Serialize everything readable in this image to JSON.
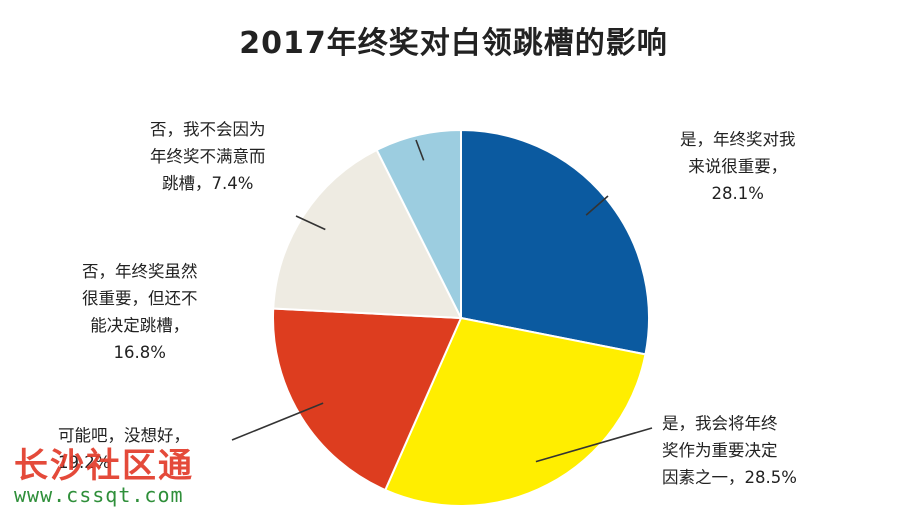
{
  "chart_data": {
    "type": "pie",
    "title": "2017年终奖对白领跳槽的影响",
    "slices": [
      {
        "name": "是，年终奖对我来说很重要",
        "value": 28.1,
        "color": "#0b5aa0",
        "label_lines": [
          "是，年终奖对我",
          "来说很重要，",
          "28.1%"
        ]
      },
      {
        "name": "是，我会将年终奖作为重要决定因素之一",
        "value": 28.5,
        "color": "#ffee00",
        "label_lines": [
          "是，我会将年终",
          "奖作为重要决定",
          "因素之一，28.5%"
        ]
      },
      {
        "name": "可能吧，没想好",
        "value": 19.2,
        "color": "#dd3d1f",
        "label_lines": [
          "可能吧，没想好，",
          "19.2%"
        ]
      },
      {
        "name": "否，年终奖虽然很重要，但还不能决定跳槽",
        "value": 16.8,
        "color": "#eeebe2",
        "label_lines": [
          "否，年终奖虽然",
          "很重要，但还不",
          "能决定跳槽，",
          "16.8%"
        ]
      },
      {
        "name": "否，我不会因为年终奖不满意而跳槽",
        "value": 7.4,
        "color": "#9ccde0",
        "label_lines": [
          "否，我不会因为",
          "年终奖不满意而",
          "跳槽，7.4%"
        ]
      }
    ]
  },
  "watermark": {
    "name": "长沙社区通",
    "url": "www.cssqt.com"
  }
}
